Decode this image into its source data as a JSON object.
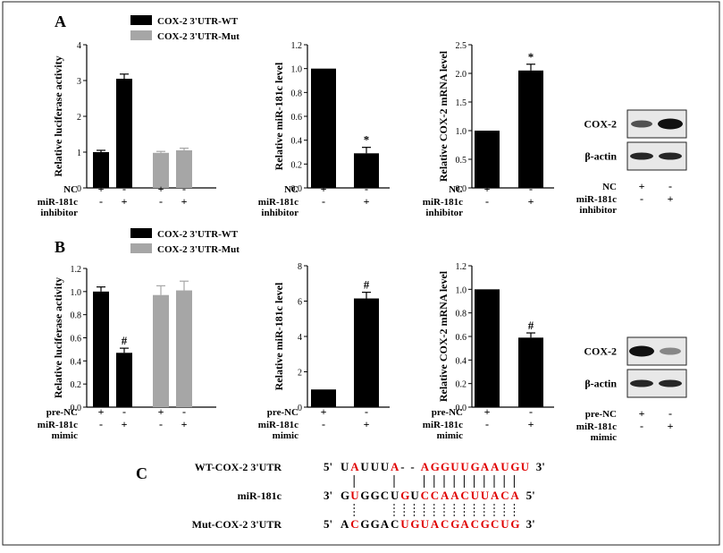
{
  "panel_labels": [
    "A",
    "B",
    "C"
  ],
  "colors": {
    "wt": "#000000",
    "mut": "#a6a6a6",
    "red": "#e00000"
  },
  "chart_data": [
    {
      "type": "bar",
      "id": "A-luc",
      "ylabel": "Relative luciferase activity",
      "ylim": [
        0,
        4
      ],
      "yticks": [
        "0",
        "1",
        "2",
        "3",
        "4"
      ],
      "legend": [
        "COX-2 3'UTR-WT",
        "COX-2 3'UTR-Mut"
      ],
      "bars": [
        {
          "value": 1.0,
          "err": 0.05,
          "series": "wt"
        },
        {
          "value": 3.05,
          "err": 0.13,
          "series": "wt"
        },
        {
          "value": 0.98,
          "err": 0.04,
          "series": "mut"
        },
        {
          "value": 1.05,
          "err": 0.06,
          "series": "mut"
        }
      ],
      "rows": [
        {
          "label": "NC",
          "marks": [
            "+",
            "-",
            "+",
            "-"
          ]
        },
        {
          "label": "miR-181c inhibitor",
          "marks": [
            "-",
            "+",
            "-",
            "+"
          ]
        }
      ]
    },
    {
      "type": "bar",
      "id": "A-mir",
      "ylabel": "Relative miR-181c level",
      "ylim": [
        0,
        1.2
      ],
      "yticks": [
        "0.0",
        "0.2",
        "0.4",
        "0.6",
        "0.8",
        "1.0",
        "1.2"
      ],
      "bars": [
        {
          "value": 1.0,
          "err": 0,
          "series": "wt"
        },
        {
          "value": 0.29,
          "err": 0.05,
          "series": "wt",
          "mark": "*"
        }
      ],
      "rows": [
        {
          "label": "NC",
          "marks": [
            "+",
            "-"
          ]
        },
        {
          "label": "miR-181c inhibitor",
          "marks": [
            "-",
            "+"
          ]
        }
      ]
    },
    {
      "type": "bar",
      "id": "A-mrna",
      "ylabel": "Relative COX-2 mRNA level",
      "ylim": [
        0,
        2.5
      ],
      "yticks": [
        "0.0",
        "0.5",
        "1.0",
        "1.5",
        "2.0",
        "2.5"
      ],
      "bars": [
        {
          "value": 1.0,
          "err": 0,
          "series": "wt"
        },
        {
          "value": 2.05,
          "err": 0.11,
          "series": "wt",
          "mark": "*"
        }
      ],
      "rows": [
        {
          "label": "NC",
          "marks": [
            "+",
            "-"
          ]
        },
        {
          "label": "miR-181c inhibitor",
          "marks": [
            "-",
            "+"
          ]
        }
      ]
    },
    {
      "type": "bar",
      "id": "B-luc",
      "ylabel": "Relative luciferase activity",
      "ylim": [
        0,
        1.2
      ],
      "yticks": [
        "0.0",
        "0.2",
        "0.4",
        "0.6",
        "0.8",
        "1.0",
        "1.2"
      ],
      "legend": [
        "COX-2 3'UTR-WT",
        "COX-2 3'UTR-Mut"
      ],
      "bars": [
        {
          "value": 1.0,
          "err": 0.04,
          "series": "wt"
        },
        {
          "value": 0.47,
          "err": 0.04,
          "series": "wt",
          "mark": "#"
        },
        {
          "value": 0.97,
          "err": 0.08,
          "series": "mut"
        },
        {
          "value": 1.01,
          "err": 0.08,
          "series": "mut"
        }
      ],
      "rows": [
        {
          "label": "pre-NC",
          "marks": [
            "+",
            "-",
            "+",
            "-"
          ]
        },
        {
          "label": "miR-181c mimic",
          "marks": [
            "-",
            "+",
            "-",
            "+"
          ]
        }
      ]
    },
    {
      "type": "bar",
      "id": "B-mir",
      "ylabel": "Relative miR-181c level",
      "ylim": [
        0,
        8
      ],
      "yticks": [
        "0",
        "2",
        "4",
        "6",
        "8"
      ],
      "bars": [
        {
          "value": 1.0,
          "err": 0,
          "series": "wt"
        },
        {
          "value": 6.15,
          "err": 0.35,
          "series": "wt",
          "mark": "#"
        }
      ],
      "rows": [
        {
          "label": "pre-NC",
          "marks": [
            "+",
            "-"
          ]
        },
        {
          "label": "miR-181c mimic",
          "marks": [
            "-",
            "+"
          ]
        }
      ]
    },
    {
      "type": "bar",
      "id": "B-mrna",
      "ylabel": "Relative COX-2 mRNA level",
      "ylim": [
        0,
        1.2
      ],
      "yticks": [
        "0.0",
        "0.2",
        "0.4",
        "0.6",
        "0.8",
        "1.0",
        "1.2"
      ],
      "bars": [
        {
          "value": 1.0,
          "err": 0,
          "series": "wt"
        },
        {
          "value": 0.59,
          "err": 0.04,
          "series": "wt",
          "mark": "#"
        }
      ],
      "rows": [
        {
          "label": "pre-NC",
          "marks": [
            "+",
            "-"
          ]
        },
        {
          "label": "miR-181c mimic",
          "marks": [
            "-",
            "+"
          ]
        }
      ]
    }
  ],
  "blots": [
    {
      "id": "A-blot",
      "labels": [
        "COX-2",
        "β-actin"
      ],
      "rows": [
        {
          "label": "NC",
          "marks": [
            "+",
            "-"
          ]
        },
        {
          "label": "miR-181c inhibitor",
          "marks": [
            "-",
            "+"
          ]
        }
      ]
    },
    {
      "id": "B-blot",
      "labels": [
        "COX-2",
        "β-actin"
      ],
      "rows": [
        {
          "label": "pre-NC",
          "marks": [
            "+",
            "-"
          ]
        },
        {
          "label": "miR-181c mimic",
          "marks": [
            "-",
            "+"
          ]
        }
      ]
    }
  ],
  "sequences": {
    "rows": [
      {
        "label": "WT-COX-2 3'UTR",
        "prefix": "5'",
        "seq": "UAUUUA--AGGUUGAAUGU",
        "suffix": "3'",
        "red": [
          1,
          5,
          8,
          9,
          10,
          11,
          12,
          13,
          14,
          15,
          16,
          17,
          18
        ]
      },
      {
        "label": "miR-181c",
        "prefix": "3'",
        "seq": "GUGGCUGUCCAACUUACA",
        "suffix": "5'",
        "red": [
          1,
          6,
          8,
          9,
          10,
          11,
          12,
          13,
          14,
          15,
          16,
          17
        ]
      },
      {
        "label": "Mut-COX-2 3'UTR",
        "prefix": "5'",
        "seq": "ACGGACUGUACGACGCUG",
        "suffix": "3'",
        "red": [
          1,
          6,
          7,
          8,
          9,
          10,
          11,
          12,
          13,
          14,
          15,
          16,
          17
        ]
      }
    ]
  }
}
